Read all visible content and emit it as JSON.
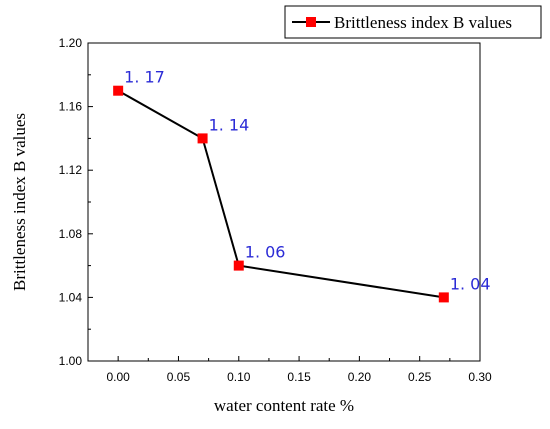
{
  "chart_data": {
    "type": "line",
    "xlabel": "water content rate %",
    "ylabel": "Brittleness index B values",
    "xlim": [
      -0.025,
      0.3
    ],
    "ylim": [
      1.0,
      1.2
    ],
    "x_ticks": [
      0.0,
      0.05,
      0.1,
      0.15,
      0.2,
      0.25,
      0.3
    ],
    "x_tick_labels": [
      "0.00",
      "0.05",
      "0.10",
      "0.15",
      "0.20",
      "0.25",
      "0.30"
    ],
    "y_ticks": [
      1.0,
      1.04,
      1.08,
      1.12,
      1.16,
      1.2
    ],
    "y_tick_labels": [
      "1.00",
      "1.04",
      "1.08",
      "1.12",
      "1.16",
      "1.20"
    ],
    "legend_position": "top-right",
    "series": [
      {
        "name": "Brittleness index B values",
        "x": [
          0.0,
          0.07,
          0.1,
          0.27
        ],
        "y": [
          1.17,
          1.14,
          1.06,
          1.04
        ],
        "point_labels": [
          "1. 17",
          "1. 14",
          "1. 06",
          "1. 04"
        ]
      }
    ],
    "colors": {
      "line": "#000000",
      "marker": "#ff0000",
      "data_label": "#2b2bd6",
      "axis": "#000000"
    }
  }
}
